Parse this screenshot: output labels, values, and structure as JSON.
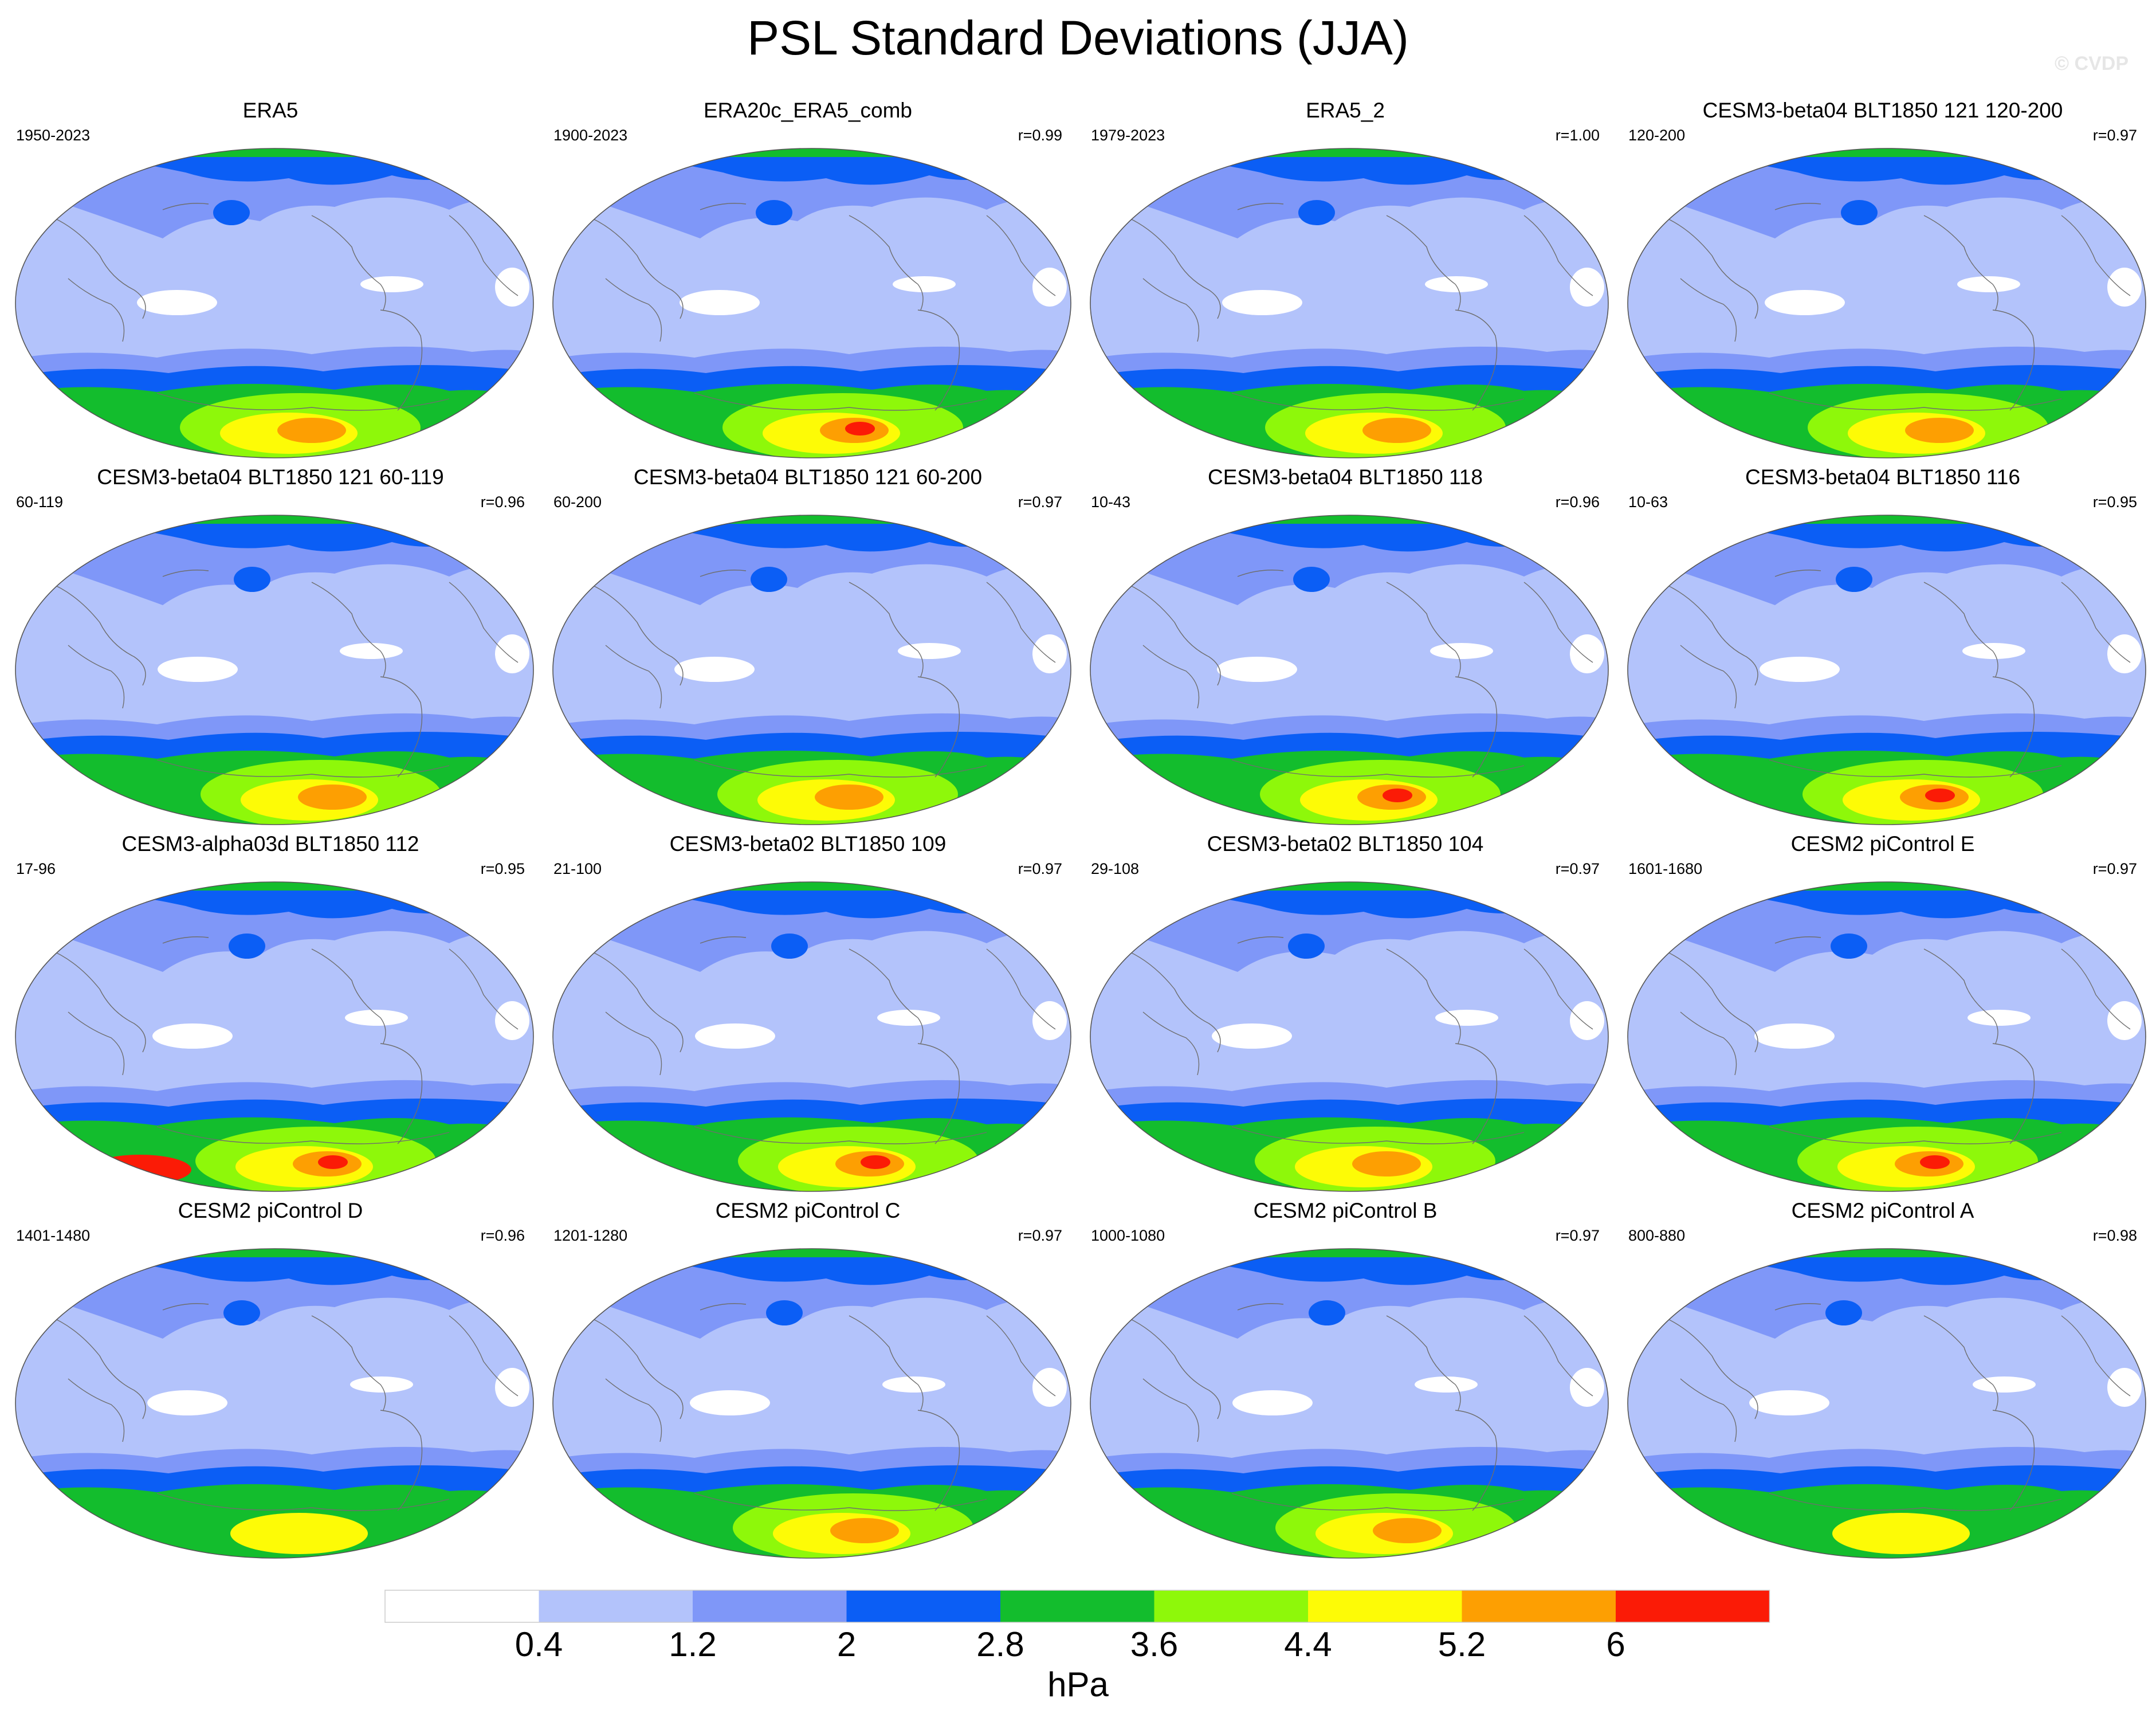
{
  "title": "PSL Standard Deviations (JJA)",
  "watermark": "© CVDP",
  "panels": [
    {
      "name": "ERA5",
      "years": "1950-2023",
      "r": ""
    },
    {
      "name": "ERA20c_ERA5_comb",
      "years": "1900-2023",
      "r": "r=0.99"
    },
    {
      "name": "ERA5_2",
      "years": "1979-2023",
      "r": "r=1.00"
    },
    {
      "name": "CESM3-beta04 BLT1850 121 120-200",
      "years": "120-200",
      "r": "r=0.97"
    },
    {
      "name": "CESM3-beta04 BLT1850 121 60-119",
      "years": "60-119",
      "r": "r=0.96"
    },
    {
      "name": "CESM3-beta04 BLT1850 121 60-200",
      "years": "60-200",
      "r": "r=0.97"
    },
    {
      "name": "CESM3-beta04 BLT1850 118",
      "years": "10-43",
      "r": "r=0.96"
    },
    {
      "name": "CESM3-beta04 BLT1850 116",
      "years": "10-63",
      "r": "r=0.95"
    },
    {
      "name": "CESM3-alpha03d BLT1850 112",
      "years": "17-96",
      "r": "r=0.95"
    },
    {
      "name": "CESM3-beta02 BLT1850 109",
      "years": "21-100",
      "r": "r=0.97"
    },
    {
      "name": "CESM3-beta02 BLT1850 104",
      "years": "29-108",
      "r": "r=0.97"
    },
    {
      "name": "CESM2 piControl E",
      "years": "1601-1680",
      "r": "r=0.97"
    },
    {
      "name": "CESM2 piControl D",
      "years": "1401-1480",
      "r": "r=0.96"
    },
    {
      "name": "CESM2 piControl C",
      "years": "1201-1280",
      "r": "r=0.97"
    },
    {
      "name": "CESM2 piControl B",
      "years": "1000-1080",
      "r": "r=0.97"
    },
    {
      "name": "CESM2 piControl A",
      "years": "800-880",
      "r": "r=0.98"
    }
  ],
  "chart_data": {
    "type": "heatmap",
    "title": "PSL Standard Deviations (JJA)",
    "projection": "Robinson global map, Pacific-centered",
    "levels": [
      0.4,
      1.2,
      2,
      2.8,
      3.6,
      4.4,
      5.2,
      6
    ],
    "level_labels": [
      "0.4",
      "1.2",
      "2",
      "2.8",
      "3.6",
      "4.4",
      "5.2",
      "6"
    ],
    "colors": [
      "#ffffff",
      "#b3c3fb",
      "#7f97f8",
      "#0b5ef5",
      "#13bd2d",
      "#8ef80a",
      "#fdfb06",
      "#fd9f02",
      "#fb1b06"
    ],
    "unit": "hPa",
    "layout": {
      "rows": 4,
      "cols": 4
    },
    "intensity": [
      5,
      6,
      5,
      5,
      5,
      5,
      6,
      6,
      7,
      6,
      5,
      6,
      4,
      5,
      5,
      4
    ]
  }
}
